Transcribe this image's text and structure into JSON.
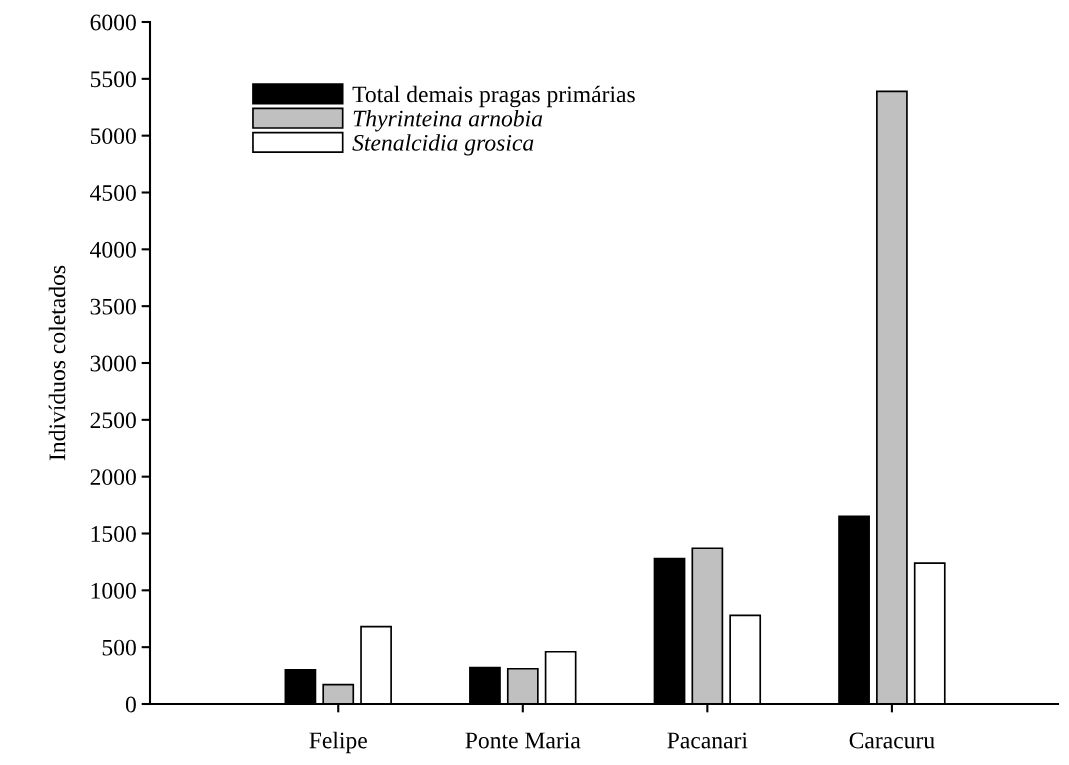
{
  "chart_data": {
    "type": "bar",
    "ylabel": "Indivíduos coletados",
    "categories": [
      "Felipe",
      "Ponte Maria",
      "Pacanari",
      "Caracuru"
    ],
    "series": [
      {
        "name": "Total demais pragas primárias",
        "color": "#000000",
        "values": [
          300,
          320,
          1280,
          1650
        ]
      },
      {
        "name": "Thyrinteina arnobia",
        "color": "#c0c0c0",
        "values": [
          170,
          310,
          1370,
          5390
        ]
      },
      {
        "name": "Stenalcidia grosica",
        "color": "#ffffff",
        "values": [
          680,
          460,
          780,
          1240
        ]
      }
    ],
    "ylim": [
      0,
      6000
    ],
    "yticks": [
      0,
      500,
      1000,
      1500,
      2000,
      2500,
      3000,
      3500,
      4000,
      4500,
      5000,
      5500,
      6000
    ],
    "grid": false,
    "legend": "top left"
  }
}
